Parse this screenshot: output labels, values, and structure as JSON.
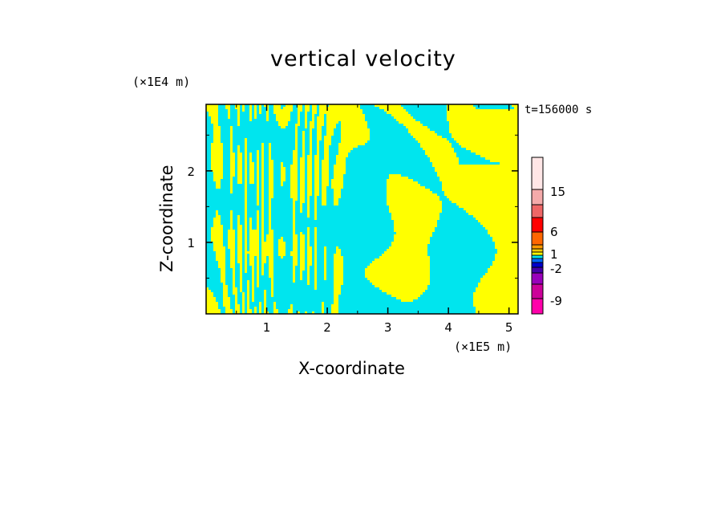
{
  "chart_data": {
    "type": "heatmap",
    "title": "vertical velocity",
    "xlabel": "X-coordinate",
    "ylabel": "Z-coordinate",
    "x_multiplier": "(×1E5 m)",
    "y_multiplier": "(×1E4 m)",
    "annotation": "t=156000 s",
    "xlim": [
      0,
      5.15
    ],
    "ylim": [
      0,
      2.93
    ],
    "x_ticks": [
      "1",
      "2",
      "3",
      "4",
      "5"
    ],
    "y_ticks": [
      "1",
      "2"
    ],
    "dominant_colors": {
      "positive": "#ffff00",
      "negative": "#00e5ee"
    },
    "colorbar": {
      "levels": [
        {
          "color": "#ff00aa"
        },
        {
          "color": "#cc0099"
        },
        {
          "color": "#9900bb"
        },
        {
          "color": "#4400aa"
        },
        {
          "color": "#0000cc"
        },
        {
          "color": "#0066ff"
        },
        {
          "color": "#00e5ee"
        },
        {
          "color": "#ffff00"
        },
        {
          "color": "#ffcc00"
        },
        {
          "color": "#ff9900"
        },
        {
          "color": "#ff6600"
        },
        {
          "color": "#ff0000"
        },
        {
          "color": "#ee6666"
        },
        {
          "color": "#f4aaaa"
        },
        {
          "color": "#ffe6e6"
        }
      ],
      "tick_labels": [
        "15",
        "6",
        "1",
        "-2",
        "-9"
      ]
    }
  }
}
